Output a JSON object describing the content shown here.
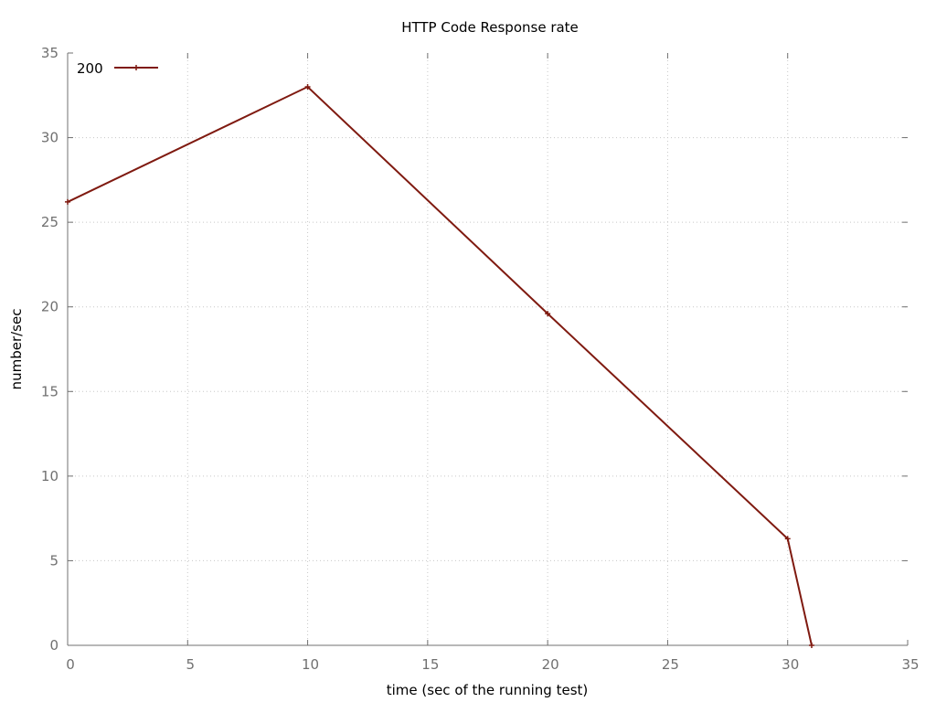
{
  "chart_data": {
    "type": "line",
    "title": "HTTP Code Response rate",
    "xlabel": "time (sec of the running test)",
    "ylabel": "number/sec",
    "xlim": [
      0,
      35
    ],
    "ylim": [
      0,
      35
    ],
    "xticks": [
      0,
      5,
      10,
      15,
      20,
      25,
      30,
      35
    ],
    "yticks": [
      0,
      5,
      10,
      15,
      20,
      25,
      30,
      35
    ],
    "grid": true,
    "legend_position": "top-left",
    "series": [
      {
        "name": "200",
        "color": "#7f1a10",
        "marker": "plus",
        "x": [
          0,
          10,
          20,
          30,
          31
        ],
        "y": [
          26.2,
          33.0,
          19.6,
          6.3,
          0
        ]
      }
    ]
  }
}
